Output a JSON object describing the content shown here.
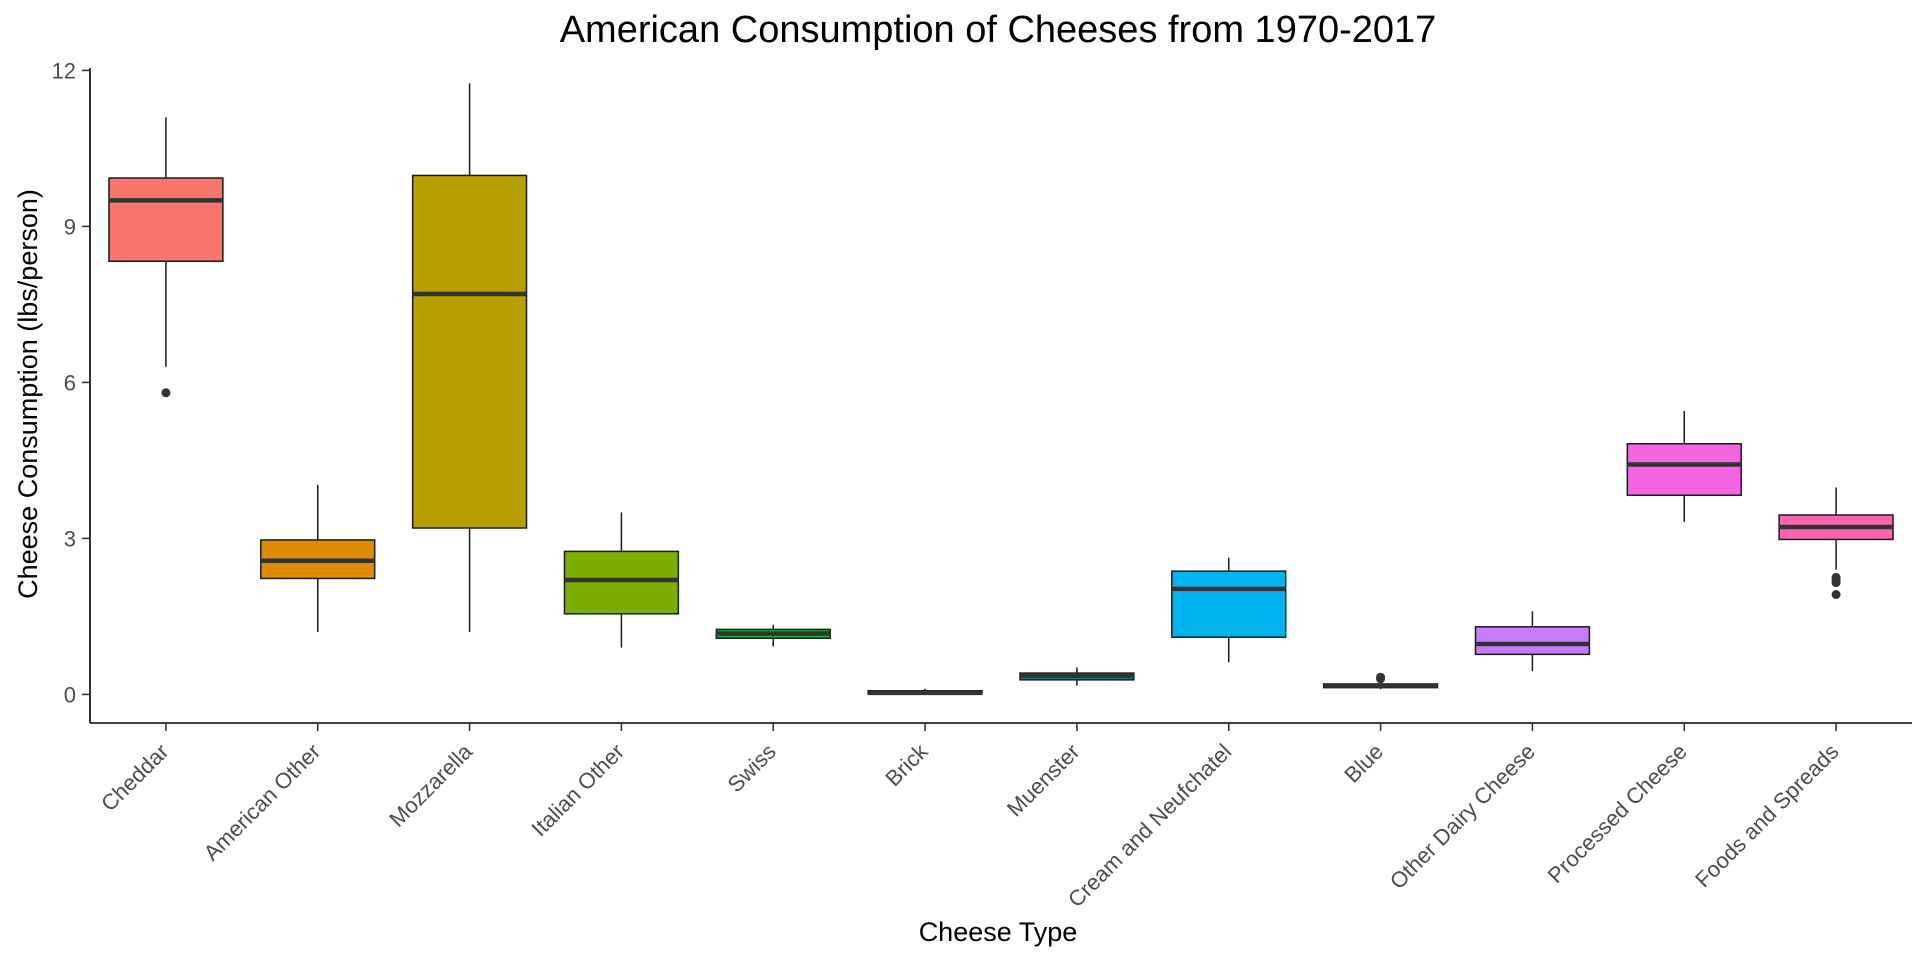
{
  "chart_data": {
    "type": "boxplot",
    "title": "American Consumption of Cheeses from 1970-2017",
    "xlabel": "Cheese Type",
    "ylabel": "Cheese Consumption (lbs/person)",
    "ylim": [
      -0.55,
      12.2
    ],
    "yticks": [
      0,
      3,
      6,
      9,
      12
    ],
    "grid": false,
    "legend": "none",
    "categories": [
      "Cheddar",
      "American Other",
      "Mozzarella",
      "Italian Other",
      "Swiss",
      "Brick",
      "Muenster",
      "Cream and Neufchatel",
      "Blue",
      "Other Dairy Cheese",
      "Processed Cheese",
      "Foods and Spreads"
    ],
    "boxes": [
      {
        "category": "Cheddar",
        "whisker_low": 6.3,
        "q1": 8.33,
        "median": 9.5,
        "q3": 9.93,
        "whisker_high": 11.1,
        "outliers": [
          5.8
        ],
        "color": "#F8766D"
      },
      {
        "category": "American Other",
        "whisker_low": 1.2,
        "q1": 2.23,
        "median": 2.57,
        "q3": 2.97,
        "whisker_high": 4.03,
        "outliers": [],
        "color": "#DE8C00"
      },
      {
        "category": "Mozzarella",
        "whisker_low": 1.2,
        "q1": 3.2,
        "median": 7.7,
        "q3": 9.98,
        "whisker_high": 11.75,
        "outliers": [],
        "color": "#B79F00"
      },
      {
        "category": "Italian Other",
        "whisker_low": 0.9,
        "q1": 1.55,
        "median": 2.2,
        "q3": 2.75,
        "whisker_high": 3.5,
        "outliers": [],
        "color": "#7CAE00"
      },
      {
        "category": "Swiss",
        "whisker_low": 0.92,
        "q1": 1.08,
        "median": 1.17,
        "q3": 1.25,
        "whisker_high": 1.34,
        "outliers": [],
        "color": "#00BA38"
      },
      {
        "category": "Brick",
        "whisker_low": 0.0,
        "q1": 0.01,
        "median": 0.03,
        "q3": 0.07,
        "whisker_high": 0.11,
        "outliers": [],
        "color": "#00C08B"
      },
      {
        "category": "Muenster",
        "whisker_low": 0.17,
        "q1": 0.28,
        "median": 0.35,
        "q3": 0.41,
        "whisker_high": 0.52,
        "outliers": [],
        "color": "#00BFC4"
      },
      {
        "category": "Cream and Neufchatel",
        "whisker_low": 0.62,
        "q1": 1.1,
        "median": 2.03,
        "q3": 2.37,
        "whisker_high": 2.63,
        "outliers": [],
        "color": "#00B4F0"
      },
      {
        "category": "Blue",
        "whisker_low": 0.1,
        "q1": 0.13,
        "median": 0.17,
        "q3": 0.2,
        "whisker_high": 0.24,
        "outliers": [
          0.3,
          0.33
        ],
        "color": "#619CFF"
      },
      {
        "category": "Other Dairy Cheese",
        "whisker_low": 0.45,
        "q1": 0.77,
        "median": 0.97,
        "q3": 1.3,
        "whisker_high": 1.6,
        "outliers": [],
        "color": "#C77CFF"
      },
      {
        "category": "Processed Cheese",
        "whisker_low": 3.32,
        "q1": 3.83,
        "median": 4.42,
        "q3": 4.82,
        "whisker_high": 5.45,
        "outliers": [],
        "color": "#F564E3"
      },
      {
        "category": "Foods and Spreads",
        "whisker_low": 2.4,
        "q1": 2.98,
        "median": 3.22,
        "q3": 3.45,
        "whisker_high": 3.98,
        "outliers": [
          1.92,
          2.15,
          2.2,
          2.25
        ],
        "color": "#FF64B0"
      }
    ]
  }
}
